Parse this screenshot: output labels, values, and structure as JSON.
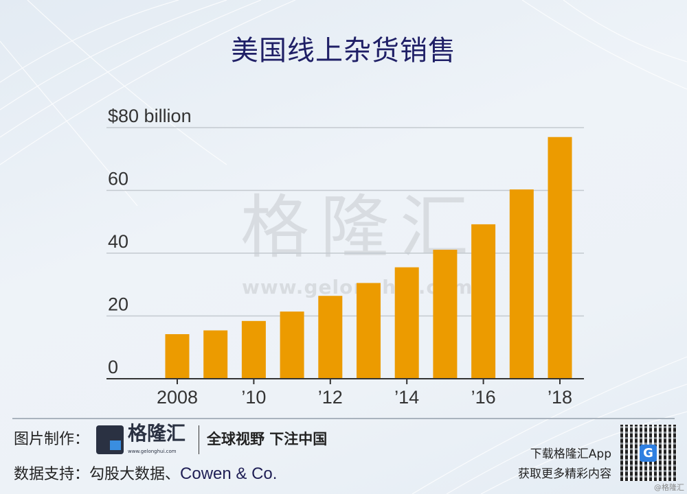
{
  "title": "美国线上杂货销售",
  "chart_data": {
    "type": "bar",
    "title": "美国线上杂货销售",
    "ylabel": "$80 billion",
    "categories": [
      "2008",
      "2009",
      "2010",
      "2011",
      "2012",
      "2013",
      "2014",
      "2015",
      "2016",
      "2017",
      "2018"
    ],
    "x_tick_labels": [
      {
        "category": "2008",
        "label": "2008"
      },
      {
        "category": "2010",
        "label": "’10"
      },
      {
        "category": "2012",
        "label": "’12"
      },
      {
        "category": "2014",
        "label": "’14"
      },
      {
        "category": "2016",
        "label": "’16"
      },
      {
        "category": "2018",
        "label": "’18"
      }
    ],
    "y_ticks": [
      {
        "value": 0,
        "label": "0"
      },
      {
        "value": 20,
        "label": "20"
      },
      {
        "value": 40,
        "label": "40"
      },
      {
        "value": 60,
        "label": "60"
      },
      {
        "value": 80,
        "label": "$80 billion"
      }
    ],
    "values": [
      14.2,
      15.4,
      18.4,
      21.4,
      26.4,
      30.5,
      35.5,
      41.1,
      49.2,
      60.3,
      77.0
    ],
    "ylim": [
      0,
      80
    ],
    "grid": true,
    "bar_color": "#ec9b00"
  },
  "watermark": {
    "text": "格隆汇",
    "url": "www.gelonghui.com"
  },
  "footer": {
    "credit_label": "图片制作：",
    "logo_text": "格隆汇",
    "logo_url": "www.gelonghui.com",
    "slogan": "全球视野 下注中国",
    "source_label": "数据支持：",
    "source_cn": "勾股大数据、",
    "source_en": "Cowen & Co.",
    "app_line1": "下载格隆汇App",
    "app_line2": "获取更多精彩内容",
    "qr_badge": "G",
    "stamp": "@格隆汇"
  }
}
